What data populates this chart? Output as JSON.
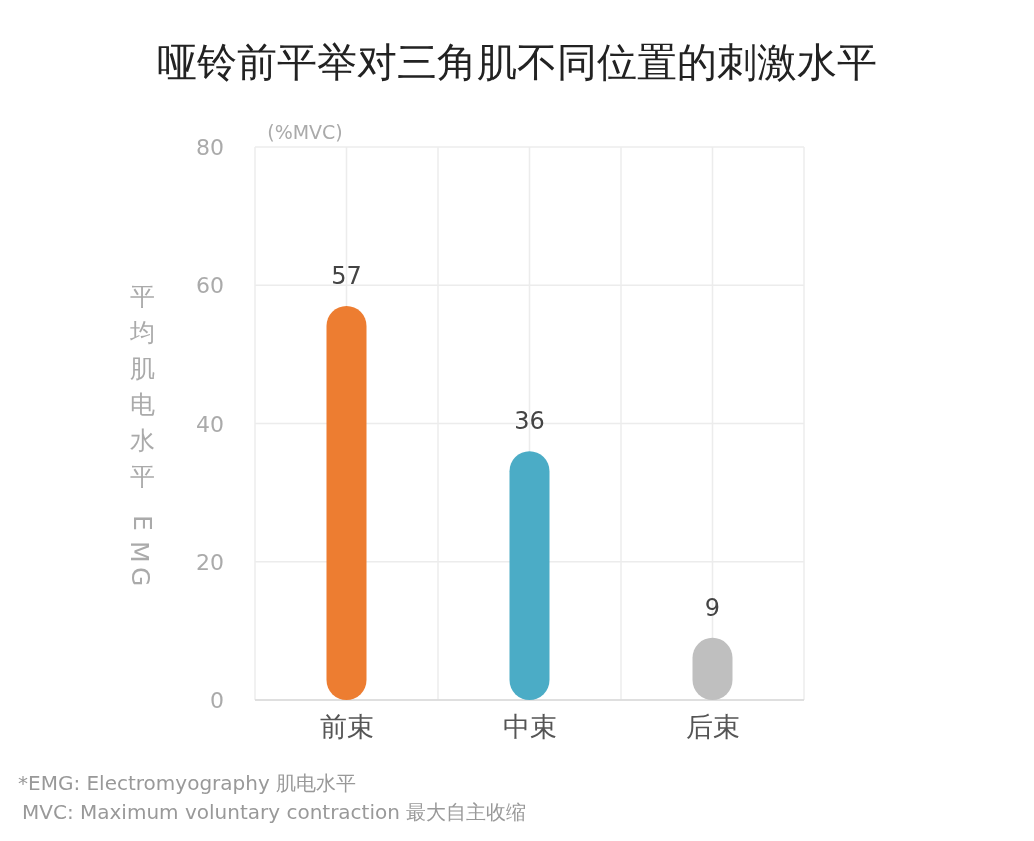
{
  "chart_data": {
    "type": "bar",
    "title": "哑铃前平举对三角肌不同位置的刺激水平",
    "ylabel": "平均肌电水平EMG",
    "categories": [
      "前束",
      "中束",
      "后束"
    ],
    "values": [
      57,
      36,
      9
    ],
    "colors": [
      "#ed7d31",
      "#4bacc6",
      "#bfbfbf"
    ],
    "ylim": [
      0,
      80
    ],
    "yticks": [
      0,
      20,
      40,
      60,
      80
    ],
    "grid": true,
    "data_labels": true,
    "annotations": [
      "(%MVC)",
      "*EMG: Electromyography  肌电水平",
      "MVC: Maximum voluntary contraction  最大自主收缩"
    ]
  }
}
